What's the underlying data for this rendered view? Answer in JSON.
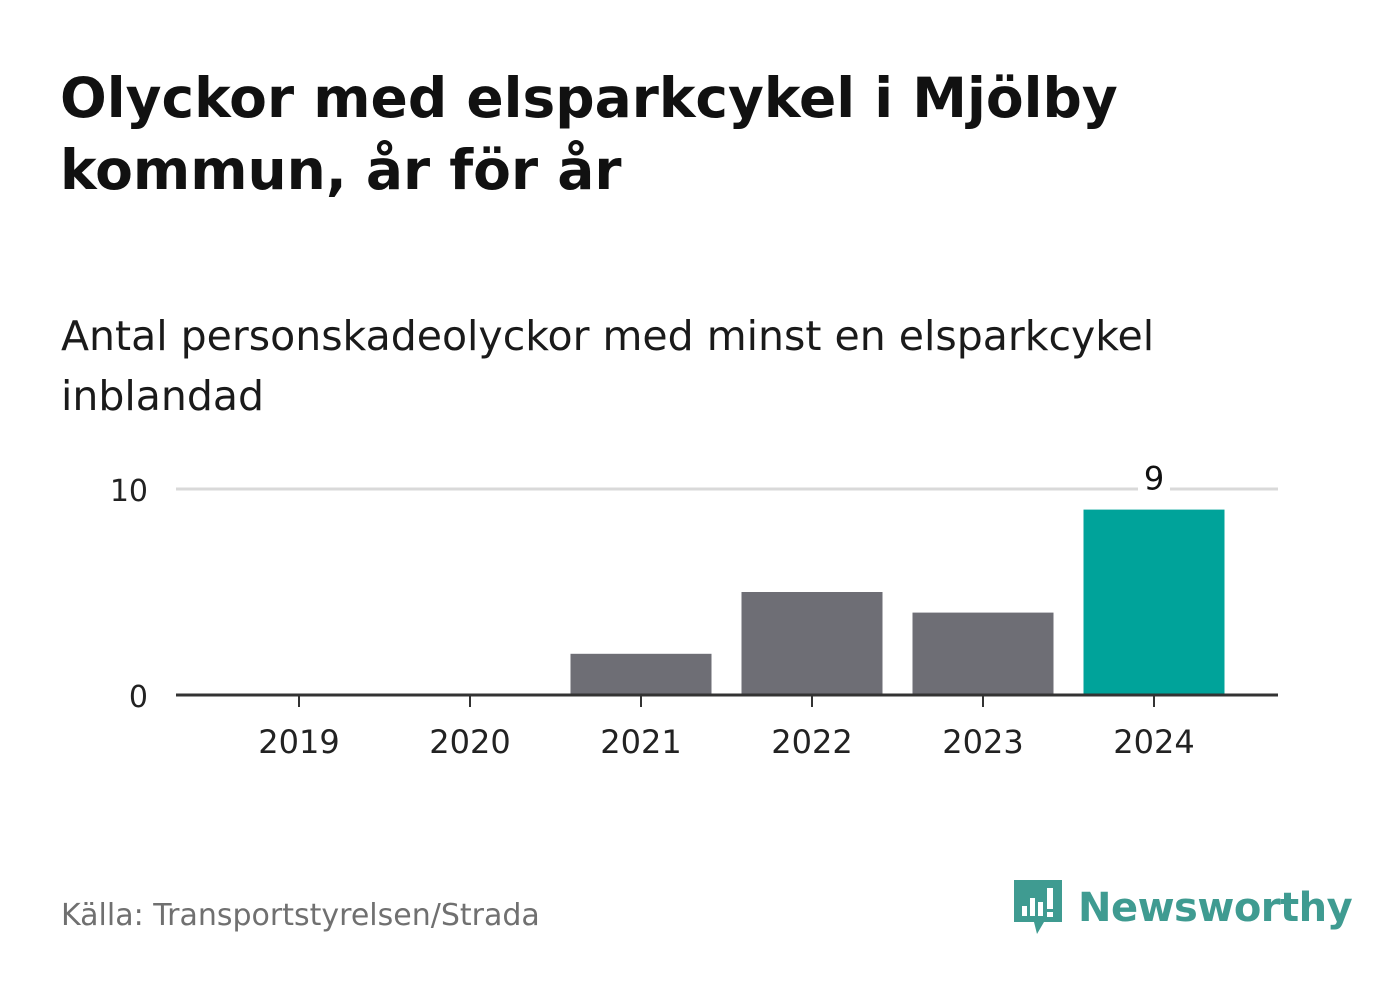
{
  "title": "Olyckor med elsparkcykel i Mjölby kommun, år för år",
  "subtitle": "Antal personskadeolyckor med minst en elsparkcykel inblandad",
  "source": "Källa: Transportstyrelsen/Strada",
  "brand": {
    "name": "Newsworthy",
    "icon": "newsworthy-logo-icon",
    "color": "#3f9b91"
  },
  "colors": {
    "bar": "#6e6e75",
    "highlight": "#00a39a",
    "grid": "#d9d9d9",
    "axis": "#333333"
  },
  "chart_data": {
    "type": "bar",
    "categories": [
      "2019",
      "2020",
      "2021",
      "2022",
      "2023",
      "2024"
    ],
    "values": [
      0,
      0,
      2,
      5,
      4,
      9
    ],
    "highlight_index": 5,
    "data_labels": [
      "",
      "",
      "",
      "",
      "",
      "9"
    ],
    "ylim": [
      0,
      10
    ],
    "yticks": [
      "0",
      "10"
    ],
    "grid": true
  }
}
